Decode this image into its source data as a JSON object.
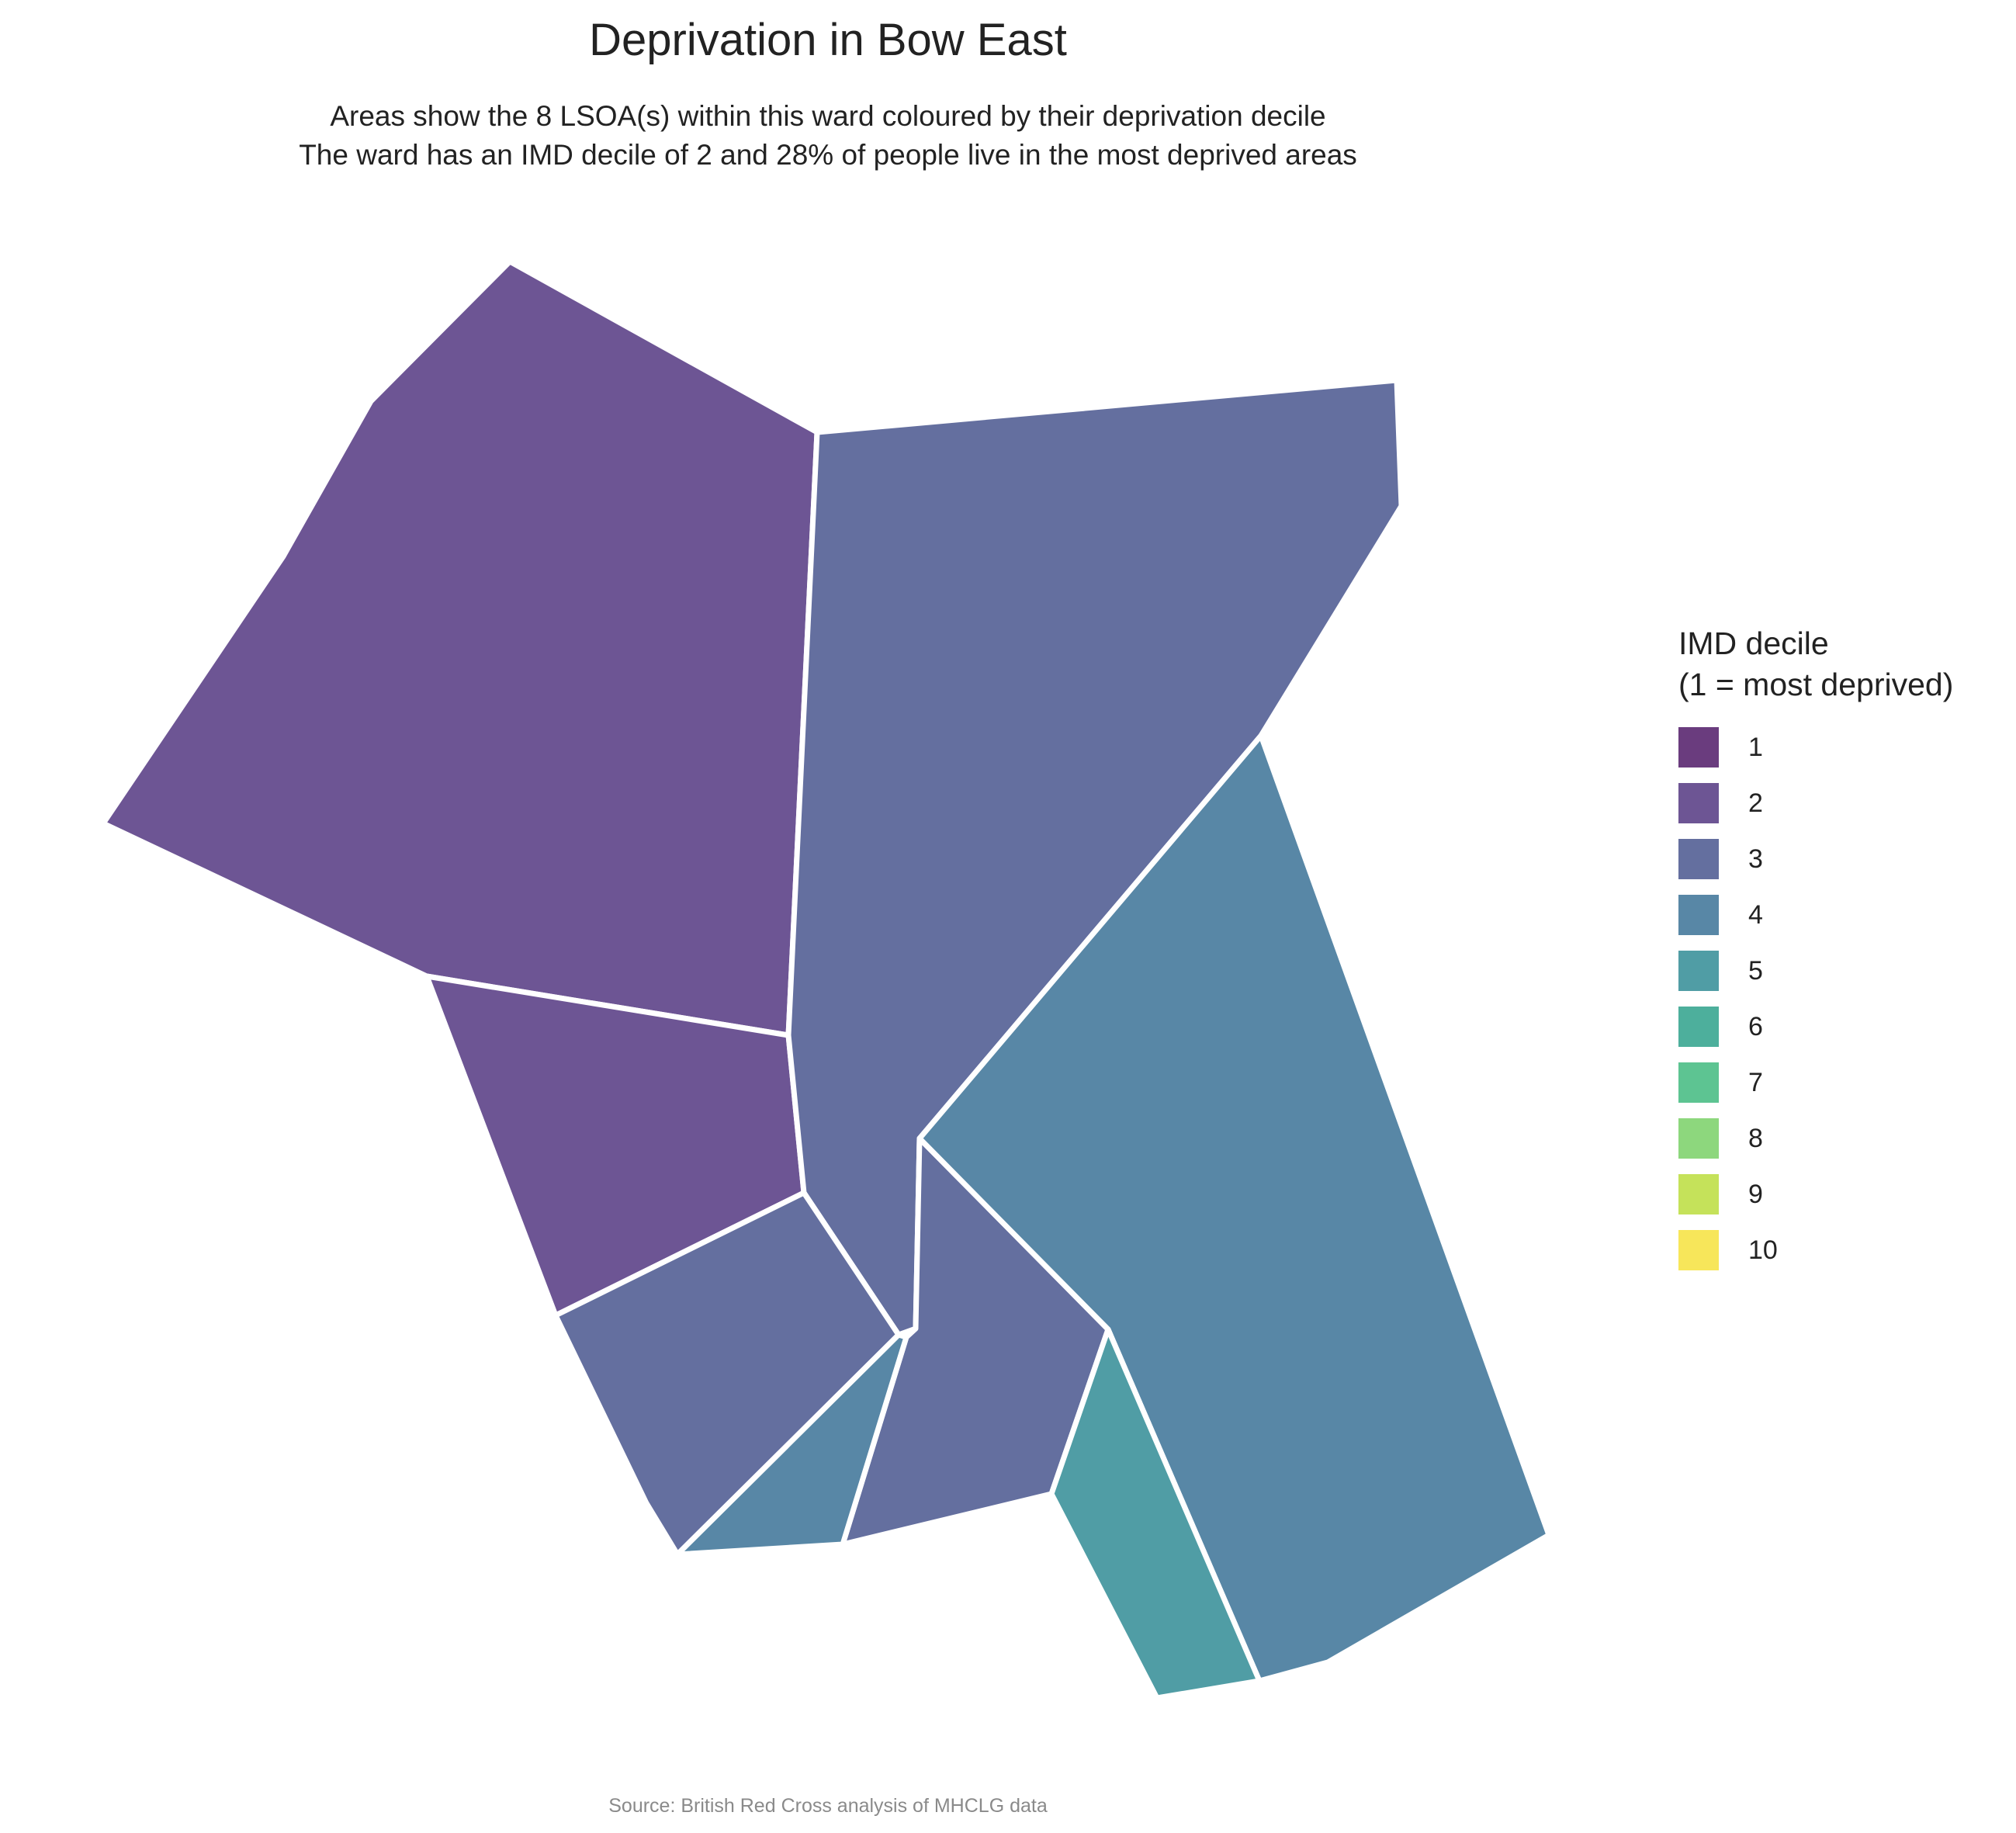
{
  "title": "Deprivation in Bow East",
  "subtitle": [
    "Areas show the 8 LSOA(s) within this ward coloured by their deprivation decile",
    "The ward has an IMD decile of 2 and 28% of people live in the most deprived areas"
  ],
  "caption": "Source: British Red Cross analysis of MHCLG data",
  "legend": {
    "title_lines": [
      "IMD decile",
      "(1 = most deprived)"
    ],
    "items": [
      {
        "label": "1",
        "color": "#6a3c7e"
      },
      {
        "label": "2",
        "color": "#6d5594"
      },
      {
        "label": "3",
        "color": "#646f9f"
      },
      {
        "label": "4",
        "color": "#5887a6"
      },
      {
        "label": "5",
        "color": "#509da5"
      },
      {
        "label": "6",
        "color": "#4daf9c"
      },
      {
        "label": "7",
        "color": "#5dc492"
      },
      {
        "label": "8",
        "color": "#8dd77d"
      },
      {
        "label": "9",
        "color": "#c5e25a"
      },
      {
        "label": "10",
        "color": "#f7e65a"
      }
    ]
  },
  "map": {
    "areas": [
      {
        "name": "lsoa-north-west",
        "decile": 2
      },
      {
        "name": "lsoa-west",
        "decile": 2
      },
      {
        "name": "lsoa-north-east",
        "decile": 3
      },
      {
        "name": "lsoa-south-west",
        "decile": 3
      },
      {
        "name": "lsoa-south-central",
        "decile": 3
      },
      {
        "name": "lsoa-south-small",
        "decile": 4
      },
      {
        "name": "lsoa-east",
        "decile": 4
      },
      {
        "name": "lsoa-south-east",
        "decile": 5
      }
    ]
  }
}
